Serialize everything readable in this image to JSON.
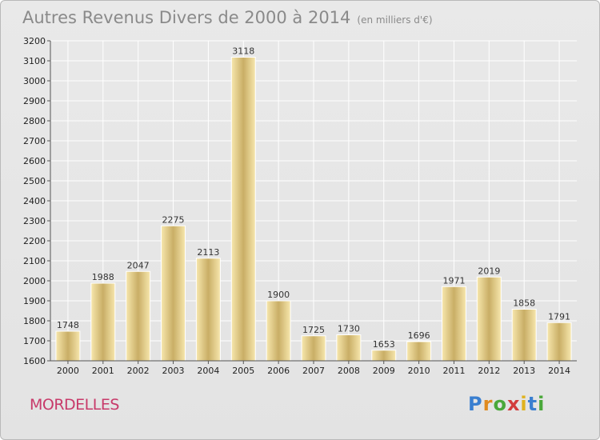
{
  "chart_data": {
    "type": "bar",
    "title": "Autres Revenus Divers de 2000 à 2014",
    "subtitle": "(en milliers d'€)",
    "categories": [
      "2000",
      "2001",
      "2002",
      "2003",
      "2004",
      "2005",
      "2006",
      "2007",
      "2008",
      "2009",
      "2010",
      "2011",
      "2012",
      "2013",
      "2014"
    ],
    "values": [
      1748,
      1988,
      2047,
      2275,
      2113,
      3118,
      1900,
      1725,
      1730,
      1653,
      1696,
      1971,
      2019,
      1858,
      1791
    ],
    "ylim": [
      1600,
      3200
    ],
    "yticks": [
      1600,
      1700,
      1800,
      1900,
      2000,
      2100,
      2200,
      2300,
      2400,
      2500,
      2600,
      2700,
      2800,
      2900,
      3000,
      3100,
      3200
    ],
    "grid": true,
    "data_labels": true
  },
  "footer": {
    "city": "MORDELLES",
    "logo": {
      "letters": [
        "P",
        "r",
        "o",
        "x",
        "i",
        "t",
        "i"
      ],
      "colors": [
        "#3a7fd0",
        "#e08a1e",
        "#4aa83a",
        "#d23c3c",
        "#e0b21e",
        "#3a7fd0",
        "#4aa83a"
      ]
    }
  },
  "colors": {
    "bar_light": "#f7e7ad",
    "bar_dark": "#c9ae66",
    "grid": "#ffffff",
    "city": "#c83a6a"
  }
}
